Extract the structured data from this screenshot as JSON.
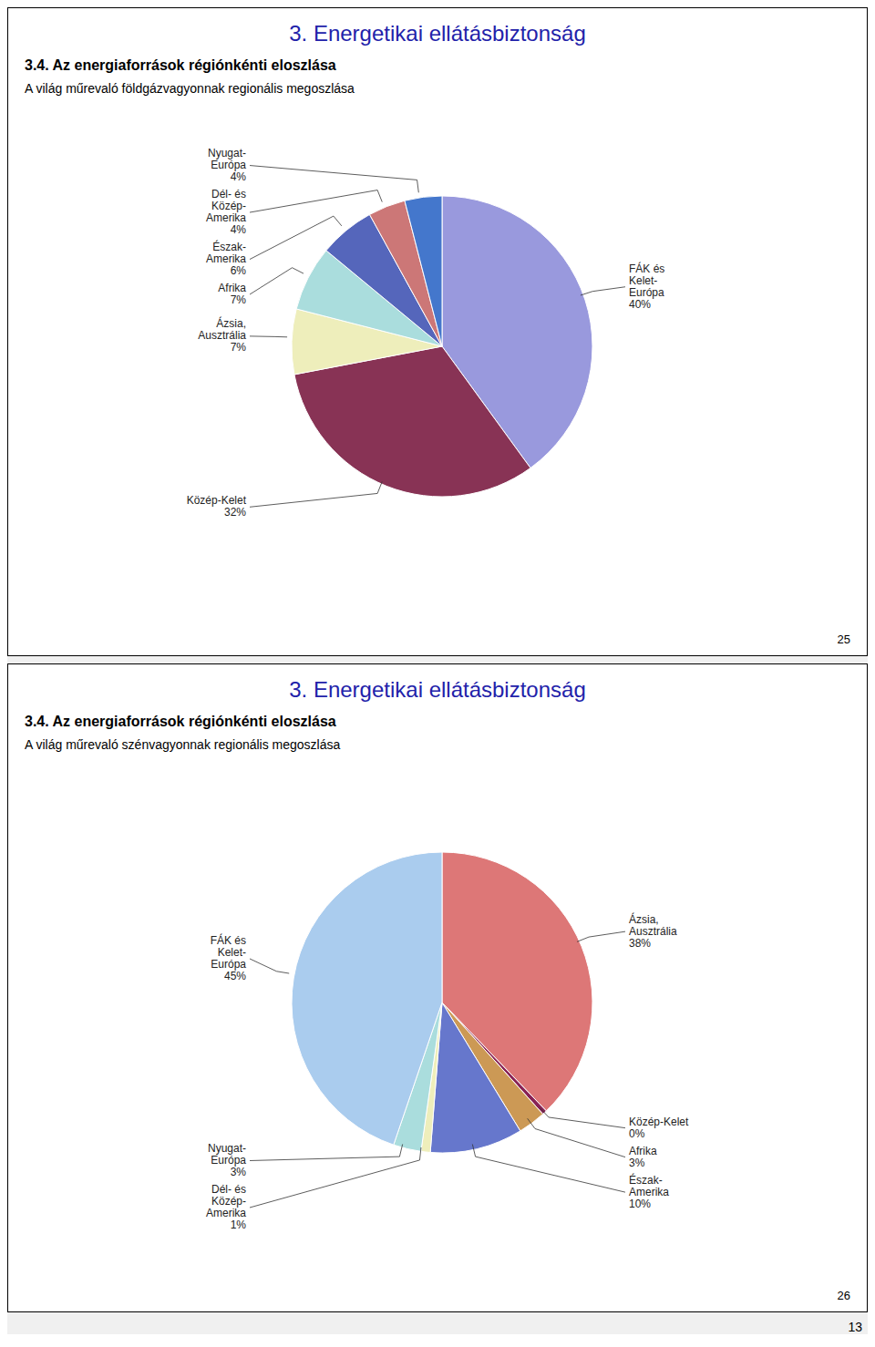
{
  "chart_data": [
    {
      "type": "pie",
      "title": "3. Energetikai ellátásbiztonság",
      "subtitle": "3.4. Az energiaforrások régiónkénti eloszlása",
      "annotations": [
        "A világ műrevaló földgázvagyonnak regionális megoszlása",
        "25"
      ],
      "categories": [
        "FÁK és\nKelet-\nEurópa",
        "Közép-Kelet",
        "Ázsia,\nAusztrália",
        "Afrika",
        "Észak-\nAmerika",
        "Dél- és\nKözép-\nAmerika",
        "Nyugat-\nEurópa"
      ],
      "values": [
        40,
        32,
        7,
        7,
        6,
        4,
        4
      ],
      "value_labels": [
        "40%",
        "32%",
        "7%",
        "7%",
        "6%",
        "4%",
        "4%"
      ],
      "colors": [
        "#9999dd",
        "#883355",
        "#eeeebb",
        "#aadddd",
        "#5566bb",
        "#cc7777",
        "#4477cc"
      ]
    },
    {
      "type": "pie",
      "title": "3. Energetikai ellátásbiztonság",
      "subtitle": "3.4. Az energiaforrások régiónkénti eloszlása",
      "annotations": [
        "A világ műrevaló szénvagyonnak regionális megoszlása",
        "26"
      ],
      "categories": [
        "Ázsia,\nAusztrália",
        "Közép-Kelet",
        "Afrika",
        "Észak-\nAmerika",
        "Dél- és\nKözép-\nAmerika",
        "Nyugat-\nEurópa",
        "FÁK és\nKelet-\nEurópa"
      ],
      "values": [
        38,
        0.5,
        3,
        10,
        1,
        3,
        45
      ],
      "value_labels": [
        "38%",
        "0%",
        "3%",
        "10%",
        "1%",
        "3%",
        "45%"
      ],
      "colors": [
        "#dd7777",
        "#882255",
        "#cc9955",
        "#6677cc",
        "#eeeebb",
        "#aadddd",
        "#aaccee"
      ]
    }
  ],
  "annotations": [
    "13"
  ]
}
